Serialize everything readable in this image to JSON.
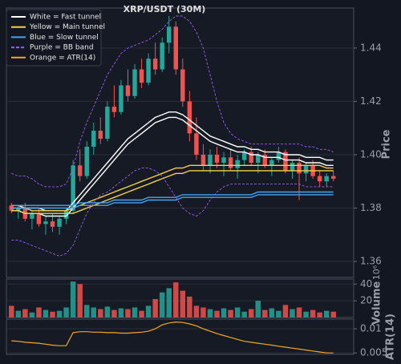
{
  "chart_data": [
    {
      "type": "candlestick",
      "title": "XRP/USDT (30M)",
      "ylabel": "Price",
      "ylim": [
        1.354,
        1.455
      ],
      "yticks": [
        1.36,
        1.38,
        {
          "value": 1.4,
          "label": "1.40"
        },
        1.42,
        1.44
      ],
      "grid": true,
      "up_color": "#26a69a",
      "down_color": "#ef5350",
      "legend": "upper left",
      "open": [
        1.381,
        1.379,
        1.38,
        1.376,
        1.378,
        1.374,
        1.375,
        1.373,
        1.376,
        1.379,
        1.396,
        1.392,
        1.403,
        1.409,
        1.406,
        1.418,
        1.416,
        1.426,
        1.422,
        1.432,
        1.427,
        1.436,
        1.432,
        1.442,
        1.448,
        1.432,
        1.42,
        1.408,
        1.4,
        1.396,
        1.4,
        1.397,
        1.399,
        1.395,
        1.398,
        1.401,
        1.397,
        1.4,
        1.396,
        1.398,
        1.401,
        1.394,
        1.397,
        1.393,
        1.396,
        1.392,
        1.39,
        1.392
      ],
      "high": [
        1.382,
        1.381,
        1.382,
        1.379,
        1.38,
        1.377,
        1.378,
        1.377,
        1.38,
        1.398,
        1.402,
        1.405,
        1.412,
        1.414,
        1.42,
        1.426,
        1.428,
        1.432,
        1.434,
        1.436,
        1.438,
        1.442,
        1.444,
        1.452,
        1.45,
        1.436,
        1.424,
        1.414,
        1.404,
        1.402,
        1.403,
        1.401,
        1.402,
        1.4,
        1.402,
        1.403,
        1.401,
        1.402,
        1.399,
        1.403,
        1.402,
        1.398,
        1.399,
        1.397,
        1.398,
        1.394,
        1.393,
        1.394
      ],
      "low": [
        1.378,
        1.376,
        1.375,
        1.372,
        1.373,
        1.37,
        1.371,
        1.37,
        1.374,
        1.378,
        1.39,
        1.391,
        1.4,
        1.404,
        1.405,
        1.414,
        1.415,
        1.42,
        1.421,
        1.425,
        1.426,
        1.43,
        1.431,
        1.438,
        1.43,
        1.418,
        1.405,
        1.398,
        1.394,
        1.393,
        1.395,
        1.392,
        1.394,
        1.391,
        1.396,
        1.396,
        1.393,
        1.395,
        1.392,
        1.397,
        1.393,
        1.391,
        1.383,
        1.39,
        1.391,
        1.388,
        1.388,
        1.39
      ],
      "close": [
        1.379,
        1.38,
        1.376,
        1.378,
        1.374,
        1.375,
        1.373,
        1.376,
        1.379,
        1.396,
        1.392,
        1.403,
        1.409,
        1.406,
        1.418,
        1.416,
        1.426,
        1.422,
        1.432,
        1.427,
        1.436,
        1.432,
        1.442,
        1.448,
        1.432,
        1.42,
        1.408,
        1.4,
        1.396,
        1.4,
        1.397,
        1.399,
        1.395,
        1.398,
        1.401,
        1.397,
        1.4,
        1.396,
        1.398,
        1.401,
        1.394,
        1.397,
        1.393,
        1.396,
        1.392,
        1.39,
        1.392,
        1.391
      ],
      "series": [
        {
          "name": "White = Fast tunnel",
          "color": "#ffffff",
          "linestyle": "solid",
          "upper": [
            1.381,
            1.381,
            1.38,
            1.38,
            1.38,
            1.379,
            1.379,
            1.379,
            1.379,
            1.382,
            1.385,
            1.388,
            1.391,
            1.394,
            1.397,
            1.4,
            1.403,
            1.406,
            1.408,
            1.41,
            1.412,
            1.414,
            1.415,
            1.416,
            1.416,
            1.415,
            1.413,
            1.411,
            1.409,
            1.407,
            1.406,
            1.405,
            1.404,
            1.403,
            1.403,
            1.402,
            1.402,
            1.401,
            1.401,
            1.401,
            1.4,
            1.4,
            1.4,
            1.399,
            1.399,
            1.399,
            1.398,
            1.398
          ],
          "lower": [
            1.379,
            1.379,
            1.378,
            1.378,
            1.378,
            1.377,
            1.377,
            1.377,
            1.377,
            1.38,
            1.383,
            1.386,
            1.389,
            1.392,
            1.395,
            1.398,
            1.401,
            1.404,
            1.406,
            1.408,
            1.41,
            1.412,
            1.413,
            1.414,
            1.414,
            1.413,
            1.411,
            1.409,
            1.407,
            1.405,
            1.404,
            1.403,
            1.402,
            1.401,
            1.401,
            1.4,
            1.4,
            1.399,
            1.399,
            1.399,
            1.398,
            1.398,
            1.398,
            1.397,
            1.397,
            1.397,
            1.396,
            1.396
          ]
        },
        {
          "name": "Yellow = Main tunnel",
          "color": "#f5d142",
          "linestyle": "solid",
          "upper": [
            1.38,
            1.38,
            1.38,
            1.379,
            1.379,
            1.379,
            1.379,
            1.379,
            1.379,
            1.38,
            1.381,
            1.382,
            1.383,
            1.384,
            1.385,
            1.386,
            1.387,
            1.388,
            1.389,
            1.39,
            1.391,
            1.392,
            1.393,
            1.394,
            1.395,
            1.395,
            1.396,
            1.396,
            1.396,
            1.396,
            1.396,
            1.396,
            1.396,
            1.396,
            1.396,
            1.396,
            1.396,
            1.396,
            1.396,
            1.396,
            1.396,
            1.396,
            1.396,
            1.396,
            1.396,
            1.396,
            1.395,
            1.395
          ],
          "lower": [
            1.379,
            1.379,
            1.378,
            1.378,
            1.378,
            1.378,
            1.378,
            1.378,
            1.378,
            1.378,
            1.379,
            1.38,
            1.381,
            1.382,
            1.383,
            1.384,
            1.385,
            1.386,
            1.387,
            1.388,
            1.389,
            1.39,
            1.391,
            1.392,
            1.393,
            1.393,
            1.394,
            1.394,
            1.394,
            1.394,
            1.394,
            1.394,
            1.394,
            1.394,
            1.394,
            1.394,
            1.394,
            1.394,
            1.394,
            1.394,
            1.394,
            1.394,
            1.394,
            1.394,
            1.394,
            1.394,
            1.394,
            1.394
          ]
        },
        {
          "name": "Blue = Slow tunnel",
          "color": "#42a5f5",
          "linestyle": "solid",
          "upper": [
            1.381,
            1.381,
            1.381,
            1.381,
            1.381,
            1.381,
            1.381,
            1.381,
            1.381,
            1.381,
            1.382,
            1.382,
            1.382,
            1.382,
            1.382,
            1.383,
            1.383,
            1.383,
            1.383,
            1.383,
            1.384,
            1.384,
            1.384,
            1.384,
            1.384,
            1.385,
            1.385,
            1.385,
            1.385,
            1.385,
            1.385,
            1.385,
            1.385,
            1.385,
            1.385,
            1.385,
            1.386,
            1.386,
            1.386,
            1.386,
            1.386,
            1.386,
            1.386,
            1.386,
            1.386,
            1.386,
            1.386,
            1.386
          ],
          "lower": [
            1.38,
            1.38,
            1.38,
            1.38,
            1.38,
            1.38,
            1.38,
            1.38,
            1.38,
            1.38,
            1.381,
            1.381,
            1.381,
            1.381,
            1.381,
            1.382,
            1.382,
            1.382,
            1.382,
            1.382,
            1.383,
            1.383,
            1.383,
            1.383,
            1.383,
            1.384,
            1.384,
            1.384,
            1.384,
            1.384,
            1.384,
            1.384,
            1.384,
            1.384,
            1.384,
            1.384,
            1.385,
            1.385,
            1.385,
            1.385,
            1.385,
            1.385,
            1.385,
            1.385,
            1.385,
            1.385,
            1.385,
            1.385
          ]
        },
        {
          "name": "Purple = BB band",
          "color": "#9b5cf6",
          "linestyle": "dashed",
          "upper": [
            1.393,
            1.392,
            1.392,
            1.391,
            1.389,
            1.388,
            1.388,
            1.388,
            1.389,
            1.395,
            1.405,
            1.412,
            1.418,
            1.424,
            1.43,
            1.434,
            1.438,
            1.44,
            1.441,
            1.442,
            1.443,
            1.445,
            1.447,
            1.45,
            1.452,
            1.452,
            1.45,
            1.446,
            1.44,
            1.43,
            1.42,
            1.412,
            1.408,
            1.406,
            1.405,
            1.404,
            1.404,
            1.404,
            1.404,
            1.404,
            1.404,
            1.404,
            1.404,
            1.403,
            1.403,
            1.402,
            1.402,
            1.401
          ],
          "lower": [
            1.368,
            1.368,
            1.367,
            1.366,
            1.365,
            1.364,
            1.363,
            1.362,
            1.363,
            1.366,
            1.372,
            1.378,
            1.382,
            1.385,
            1.386,
            1.388,
            1.39,
            1.392,
            1.394,
            1.395,
            1.395,
            1.394,
            1.392,
            1.388,
            1.384,
            1.38,
            1.378,
            1.377,
            1.379,
            1.383,
            1.386,
            1.388,
            1.389,
            1.389,
            1.389,
            1.389,
            1.389,
            1.389,
            1.389,
            1.389,
            1.389,
            1.389,
            1.389,
            1.388,
            1.388,
            1.388,
            1.388,
            1.388
          ]
        }
      ]
    },
    {
      "type": "bar",
      "ylabel": "Volume",
      "offset_label": "10⁶",
      "ylim": [
        0,
        46
      ],
      "yticks": [
        20,
        40
      ],
      "grid": true,
      "values": [
        14,
        8,
        10,
        6,
        12,
        9,
        7,
        8,
        12,
        43,
        40,
        15,
        12,
        10,
        13,
        9,
        11,
        10,
        12,
        8,
        14,
        22,
        30,
        35,
        42,
        32,
        25,
        14,
        12,
        10,
        8,
        11,
        9,
        12,
        7,
        10,
        20,
        9,
        11,
        8,
        15,
        10,
        12,
        7,
        9,
        6,
        8,
        7
      ]
    },
    {
      "type": "line",
      "ylabel": "ATR(14)",
      "ylim": [
        0.0047,
        0.012
      ],
      "yticks": [
        0.005,
        0.01
      ],
      "grid": true,
      "series": [
        {
          "name": "Orange = ATR(14)",
          "color": "#f5a623",
          "values": [
            0.0075,
            0.0074,
            0.0072,
            0.0071,
            0.007,
            0.0068,
            0.0066,
            0.0065,
            0.0065,
            0.0092,
            0.0094,
            0.0094,
            0.0093,
            0.0093,
            0.0092,
            0.0092,
            0.0091,
            0.0091,
            0.0092,
            0.0093,
            0.0095,
            0.01,
            0.0108,
            0.0112,
            0.0114,
            0.0113,
            0.011,
            0.0106,
            0.01,
            0.0095,
            0.009,
            0.0086,
            0.0082,
            0.0078,
            0.0074,
            0.0072,
            0.007,
            0.0068,
            0.0066,
            0.0064,
            0.0062,
            0.006,
            0.0058,
            0.0056,
            0.0054,
            0.0052,
            0.005,
            0.005
          ]
        }
      ]
    }
  ]
}
